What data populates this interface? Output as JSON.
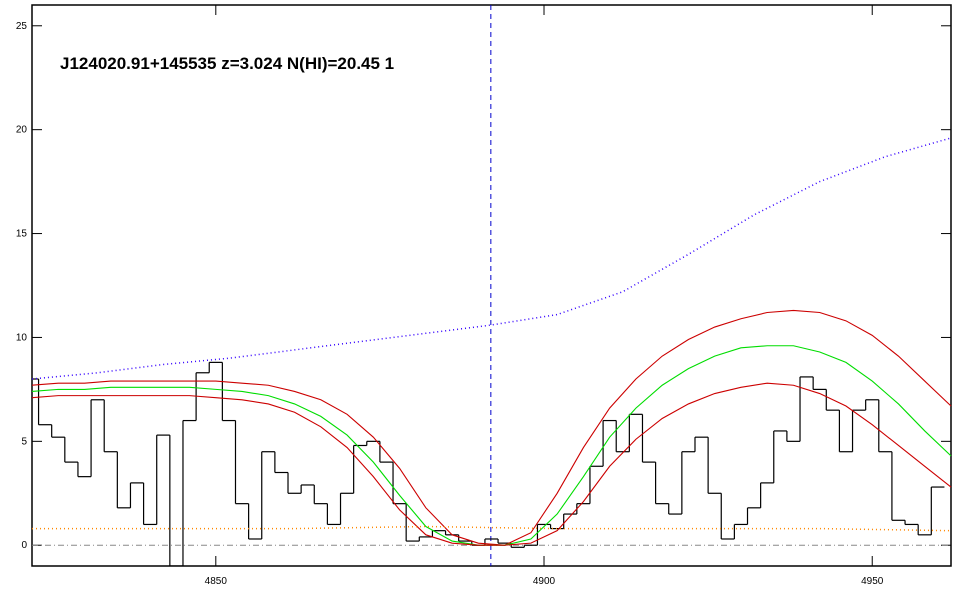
{
  "chart_data": {
    "type": "line",
    "title": "J124020.91+145535 z=3.024 N(HI)=20.45 1",
    "xlim": [
      4822,
      4962
    ],
    "ylim": [
      -1,
      26
    ],
    "xticks": [
      4850,
      4900,
      4950
    ],
    "yticks": [
      0,
      5,
      10,
      15,
      20,
      25
    ],
    "vline": 4891.9,
    "vline_color": "#0000cc",
    "hline": 0,
    "hline_color": "#888888",
    "series": [
      {
        "style": "steps",
        "color": "#000000",
        "x": [
          4822,
          4824,
          4826,
          4828,
          4830,
          4832,
          4834,
          4836,
          4838,
          4840,
          4842,
          4844,
          4846,
          4848,
          4850,
          4852,
          4854,
          4856,
          4858,
          4860,
          4862,
          4864,
          4866,
          4868,
          4870,
          4872,
          4874,
          4876,
          4878,
          4880,
          4882,
          4884,
          4886,
          4888,
          4890,
          4892,
          4894,
          4896,
          4898,
          4900,
          4902,
          4904,
          4906,
          4908,
          4910,
          4912,
          4914,
          4916,
          4918,
          4920,
          4922,
          4924,
          4926,
          4928,
          4930,
          4932,
          4934,
          4936,
          4938,
          4940,
          4942,
          4944,
          4946,
          4948,
          4950,
          4952,
          4954,
          4956,
          4958,
          4960
        ],
        "values": [
          8.0,
          5.8,
          5.2,
          4.0,
          3.3,
          7.0,
          4.5,
          1.8,
          3.0,
          1.0,
          5.3,
          -1.0,
          6.0,
          8.3,
          8.8,
          6.0,
          2.0,
          0.3,
          4.5,
          3.5,
          2.5,
          2.9,
          2.0,
          1.0,
          2.5,
          4.8,
          5.0,
          4.0,
          2.0,
          0.2,
          0.4,
          0.7,
          0.5,
          0.2,
          0.0,
          0.3,
          0.1,
          -0.1,
          0.0,
          1.0,
          0.8,
          1.5,
          2.0,
          3.8,
          6.0,
          4.5,
          6.3,
          4.0,
          2.0,
          1.5,
          4.5,
          5.2,
          2.5,
          0.3,
          1.0,
          1.8,
          3.0,
          5.5,
          5.0,
          8.1,
          7.5,
          6.5,
          4.5,
          6.5,
          7.0,
          4.5,
          1.2,
          1.0,
          0.5,
          2.8
        ]
      },
      {
        "style": "solid",
        "color": "#cc0000",
        "x": [
          4822,
          4826,
          4830,
          4834,
          4838,
          4842,
          4846,
          4850,
          4854,
          4858,
          4862,
          4866,
          4870,
          4874,
          4878,
          4882,
          4886,
          4890,
          4894,
          4898,
          4902,
          4906,
          4910,
          4914,
          4918,
          4922,
          4926,
          4930,
          4934,
          4938,
          4942,
          4946,
          4950,
          4954,
          4958,
          4962
        ],
        "values": [
          7.7,
          7.8,
          7.8,
          7.9,
          7.9,
          7.9,
          7.9,
          7.9,
          7.8,
          7.7,
          7.4,
          7.0,
          6.3,
          5.2,
          3.7,
          1.8,
          0.5,
          0.1,
          0.0,
          0.6,
          2.5,
          4.7,
          6.6,
          8.0,
          9.1,
          9.9,
          10.5,
          10.9,
          11.2,
          11.3,
          11.2,
          10.8,
          10.1,
          9.1,
          7.9,
          6.7
        ]
      },
      {
        "style": "solid",
        "color": "#00dd00",
        "x": [
          4822,
          4826,
          4830,
          4834,
          4838,
          4842,
          4846,
          4850,
          4854,
          4858,
          4862,
          4866,
          4870,
          4874,
          4878,
          4882,
          4886,
          4890,
          4894,
          4898,
          4902,
          4906,
          4910,
          4914,
          4918,
          4922,
          4926,
          4930,
          4934,
          4938,
          4942,
          4946,
          4950,
          4954,
          4958,
          4962
        ],
        "values": [
          7.4,
          7.5,
          7.5,
          7.6,
          7.6,
          7.6,
          7.6,
          7.5,
          7.4,
          7.2,
          6.8,
          6.2,
          5.3,
          4.0,
          2.4,
          0.9,
          0.2,
          0.0,
          0.0,
          0.3,
          1.5,
          3.3,
          5.2,
          6.6,
          7.7,
          8.5,
          9.1,
          9.5,
          9.6,
          9.6,
          9.3,
          8.8,
          7.9,
          6.8,
          5.5,
          4.3
        ]
      },
      {
        "style": "solid",
        "color": "#cc0000",
        "x": [
          4822,
          4826,
          4830,
          4834,
          4838,
          4842,
          4846,
          4850,
          4854,
          4858,
          4862,
          4866,
          4870,
          4874,
          4878,
          4882,
          4886,
          4890,
          4894,
          4898,
          4902,
          4906,
          4910,
          4914,
          4918,
          4922,
          4926,
          4930,
          4934,
          4938,
          4942,
          4946,
          4950,
          4954,
          4958,
          4962
        ],
        "values": [
          7.1,
          7.2,
          7.2,
          7.2,
          7.2,
          7.2,
          7.2,
          7.1,
          7.0,
          6.8,
          6.4,
          5.7,
          4.7,
          3.3,
          1.7,
          0.5,
          0.1,
          0.0,
          0.0,
          0.1,
          0.7,
          2.1,
          3.8,
          5.1,
          6.1,
          6.8,
          7.3,
          7.6,
          7.8,
          7.7,
          7.3,
          6.7,
          5.8,
          4.8,
          3.8,
          2.8
        ]
      },
      {
        "style": "dotted",
        "color": "#3300ff",
        "x": [
          4822,
          4832,
          4842,
          4852,
          4862,
          4872,
          4882,
          4892,
          4902,
          4912,
          4922,
          4932,
          4942,
          4952,
          4962
        ],
        "values": [
          8.0,
          8.3,
          8.7,
          9.0,
          9.4,
          9.8,
          10.2,
          10.6,
          11.1,
          12.2,
          14.0,
          15.9,
          17.5,
          18.7,
          19.6
        ]
      },
      {
        "style": "dotted",
        "color": "#ff8800",
        "x": [
          4822,
          4842,
          4862,
          4882,
          4902,
          4922,
          4942,
          4962
        ],
        "values": [
          0.8,
          0.8,
          0.8,
          0.9,
          0.8,
          0.8,
          0.8,
          0.7
        ]
      }
    ]
  }
}
